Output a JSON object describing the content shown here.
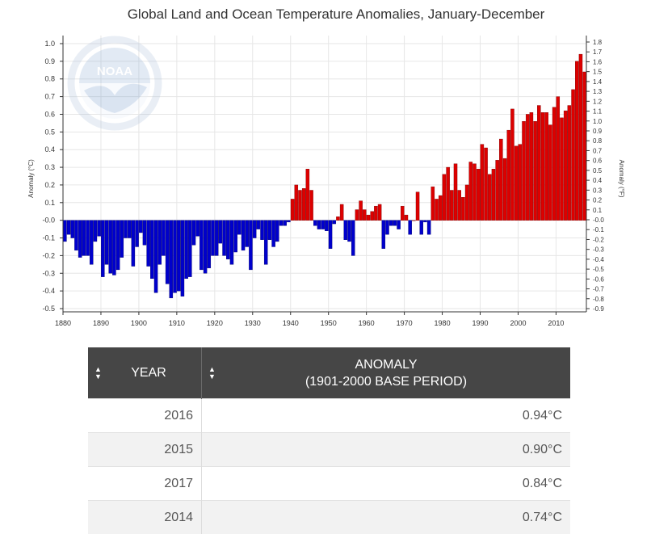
{
  "chart_data": {
    "type": "bar",
    "title": "Global Land and Ocean Temperature Anomalies, January-December",
    "ylabel_left": "Anomaly (°C)",
    "ylabel_right": "Anomaly (°F)",
    "xlim": [
      1880,
      2017
    ],
    "ylim": [
      -0.5,
      1.0
    ],
    "y_ticks_left": [
      "1.0",
      "0.9",
      "0.8",
      "0.7",
      "0.6",
      "0.5",
      "0.4",
      "0.3",
      "0.2",
      "0.1",
      "-0.0",
      "-0.1",
      "-0.2",
      "-0.3",
      "-0.4",
      "-0.5"
    ],
    "y_ticks_right": [
      "1.8",
      "1.7",
      "1.6",
      "1.5",
      "1.4",
      "1.3",
      "1.2",
      "1.1",
      "1.0",
      "0.9",
      "0.8",
      "0.7",
      "0.6",
      "0.5",
      "0.4",
      "0.3",
      "0.2",
      "0.1",
      "-0.0",
      "-0.1",
      "-0.2",
      "-0.3",
      "-0.4",
      "-0.5",
      "-0.6",
      "-0.7",
      "-0.8",
      "-0.9"
    ],
    "x_ticks": [
      "1880",
      "1890",
      "1900",
      "1910",
      "1920",
      "1930",
      "1940",
      "1950",
      "1960",
      "1970",
      "1980",
      "1990",
      "2000",
      "2010"
    ],
    "grid": true,
    "positive_color": "#dd0000",
    "negative_color": "#0000cc",
    "years": [
      1880,
      1881,
      1882,
      1883,
      1884,
      1885,
      1886,
      1887,
      1888,
      1889,
      1890,
      1891,
      1892,
      1893,
      1894,
      1895,
      1896,
      1897,
      1898,
      1899,
      1900,
      1901,
      1902,
      1903,
      1904,
      1905,
      1906,
      1907,
      1908,
      1909,
      1910,
      1911,
      1912,
      1913,
      1914,
      1915,
      1916,
      1917,
      1918,
      1919,
      1920,
      1921,
      1922,
      1923,
      1924,
      1925,
      1926,
      1927,
      1928,
      1929,
      1930,
      1931,
      1932,
      1933,
      1934,
      1935,
      1936,
      1937,
      1938,
      1939,
      1940,
      1941,
      1942,
      1943,
      1944,
      1945,
      1946,
      1947,
      1948,
      1949,
      1950,
      1951,
      1952,
      1953,
      1954,
      1955,
      1956,
      1957,
      1958,
      1959,
      1960,
      1961,
      1962,
      1963,
      1964,
      1965,
      1966,
      1967,
      1968,
      1969,
      1970,
      1971,
      1972,
      1973,
      1974,
      1975,
      1976,
      1977,
      1978,
      1979,
      1980,
      1981,
      1982,
      1983,
      1984,
      1985,
      1986,
      1987,
      1988,
      1989,
      1990,
      1991,
      1992,
      1993,
      1994,
      1995,
      1996,
      1997,
      1998,
      1999,
      2000,
      2001,
      2002,
      2003,
      2004,
      2005,
      2006,
      2007,
      2008,
      2009,
      2010,
      2011,
      2012,
      2013,
      2014,
      2015,
      2016,
      2017
    ],
    "values": [
      -0.12,
      -0.08,
      -0.1,
      -0.17,
      -0.21,
      -0.2,
      -0.2,
      -0.25,
      -0.12,
      -0.09,
      -0.32,
      -0.25,
      -0.3,
      -0.31,
      -0.28,
      -0.21,
      -0.1,
      -0.1,
      -0.26,
      -0.15,
      -0.07,
      -0.14,
      -0.26,
      -0.33,
      -0.41,
      -0.25,
      -0.2,
      -0.36,
      -0.44,
      -0.41,
      -0.4,
      -0.43,
      -0.33,
      -0.32,
      -0.14,
      -0.09,
      -0.28,
      -0.3,
      -0.27,
      -0.2,
      -0.2,
      -0.13,
      -0.2,
      -0.22,
      -0.25,
      -0.18,
      -0.08,
      -0.17,
      -0.15,
      -0.28,
      -0.1,
      -0.05,
      -0.11,
      -0.25,
      -0.11,
      -0.15,
      -0.12,
      -0.03,
      -0.03,
      -0.01,
      0.12,
      0.2,
      0.17,
      0.18,
      0.29,
      0.17,
      -0.03,
      -0.05,
      -0.05,
      -0.06,
      -0.16,
      -0.02,
      0.02,
      0.09,
      -0.11,
      -0.12,
      -0.2,
      0.06,
      0.11,
      0.06,
      0.03,
      0.05,
      0.08,
      0.09,
      -0.16,
      -0.08,
      -0.03,
      -0.03,
      -0.05,
      0.08,
      0.03,
      -0.08,
      0.0,
      0.16,
      -0.08,
      -0.01,
      -0.08,
      0.19,
      0.12,
      0.14,
      0.26,
      0.3,
      0.17,
      0.32,
      0.17,
      0.13,
      0.2,
      0.33,
      0.32,
      0.29,
      0.43,
      0.41,
      0.26,
      0.29,
      0.34,
      0.46,
      0.35,
      0.51,
      0.63,
      0.42,
      0.43,
      0.56,
      0.6,
      0.61,
      0.56,
      0.65,
      0.61,
      0.61,
      0.54,
      0.64,
      0.7,
      0.58,
      0.62,
      0.65,
      0.74,
      0.9,
      0.94,
      0.84
    ]
  },
  "table": {
    "headers": {
      "year": "YEAR",
      "anomaly_line1": "ANOMALY",
      "anomaly_line2": "(1901-2000 BASE PERIOD)"
    },
    "sort_icon": "sort-arrows-icon",
    "rows": [
      {
        "year": "2016",
        "anomaly": "0.94°C"
      },
      {
        "year": "2015",
        "anomaly": "0.90°C"
      },
      {
        "year": "2017",
        "anomaly": "0.84°C"
      },
      {
        "year": "2014",
        "anomaly": "0.74°C"
      }
    ]
  },
  "watermark": {
    "logo_text": "NOAA",
    "icon": "noaa-logo-icon"
  }
}
